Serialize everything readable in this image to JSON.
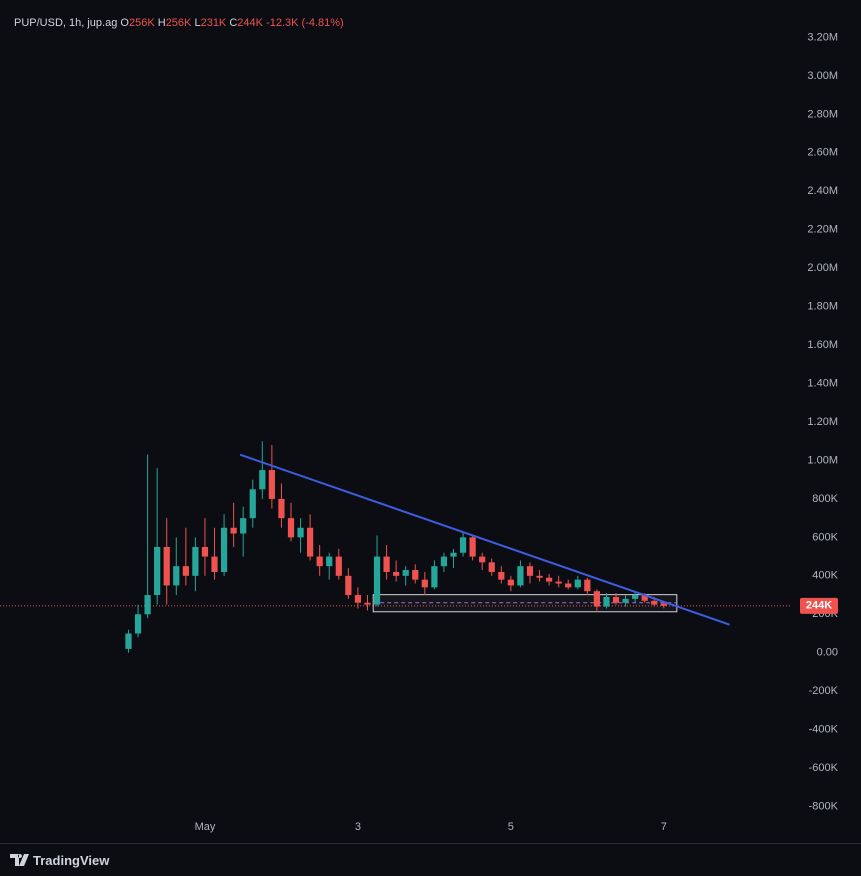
{
  "chart_data": {
    "type": "candlestick",
    "symbol": "PUP/USD, 1h, jup.ag",
    "legend_values": [
      {
        "key": "O",
        "value": "256K"
      },
      {
        "key": "H",
        "value": "256K"
      },
      {
        "key": "L",
        "value": "231K"
      },
      {
        "key": "C",
        "value": "244K"
      }
    ],
    "change": "-12.3K (-4.81%)",
    "last_price": {
      "value": 244000,
      "label": "244K"
    },
    "up_color": "#26a69a",
    "down_color": "#ef5350",
    "x": [
      0,
      0.125,
      0.25,
      0.375,
      0.5,
      0.625,
      0.75,
      0.875,
      1,
      1.125,
      1.25,
      1.375,
      1.5,
      1.625,
      1.75,
      1.875,
      2,
      2.125,
      2.25,
      2.375,
      2.5,
      2.625,
      2.75,
      2.875,
      3,
      3.125,
      3.25,
      3.375,
      3.5,
      3.625,
      3.75,
      3.875,
      4,
      4.125,
      4.25,
      4.375,
      4.5,
      4.625,
      4.75,
      4.875,
      5,
      5.125,
      5.25,
      5.375,
      5.5,
      5.625,
      5.75,
      5.875,
      6,
      6.125,
      6.25,
      6.375,
      6.5,
      6.625,
      6.75,
      6.875,
      7
    ],
    "open": [
      20000,
      100000,
      200000,
      300000,
      550000,
      350000,
      450000,
      400000,
      550000,
      500000,
      420000,
      650000,
      620000,
      700000,
      850000,
      950000,
      800000,
      700000,
      600000,
      650000,
      500000,
      450000,
      500000,
      400000,
      300000,
      260000,
      250000,
      500000,
      420000,
      400000,
      430000,
      380000,
      340000,
      450000,
      500000,
      520000,
      600000,
      500000,
      470000,
      420000,
      380000,
      350000,
      450000,
      400000,
      390000,
      370000,
      360000,
      340000,
      380000,
      320000,
      240000,
      290000,
      260000,
      280000,
      300000,
      270000,
      256000
    ],
    "high": [
      120000,
      250000,
      1030000,
      960000,
      700000,
      600000,
      650000,
      600000,
      700000,
      650000,
      720000,
      780000,
      760000,
      900000,
      1100000,
      1080000,
      880000,
      780000,
      700000,
      720000,
      560000,
      520000,
      540000,
      440000,
      340000,
      300000,
      610000,
      560000,
      480000,
      450000,
      460000,
      420000,
      480000,
      520000,
      540000,
      630000,
      610000,
      520000,
      490000,
      450000,
      400000,
      480000,
      470000,
      430000,
      410000,
      400000,
      380000,
      400000,
      390000,
      330000,
      310000,
      310000,
      300000,
      320000,
      310000,
      290000,
      256000
    ],
    "low": [
      0,
      80000,
      180000,
      250000,
      250000,
      300000,
      350000,
      320000,
      400000,
      380000,
      400000,
      550000,
      500000,
      650000,
      800000,
      750000,
      650000,
      580000,
      520000,
      480000,
      400000,
      380000,
      380000,
      280000,
      230000,
      220000,
      240000,
      380000,
      370000,
      350000,
      360000,
      300000,
      330000,
      420000,
      440000,
      500000,
      480000,
      430000,
      400000,
      360000,
      320000,
      340000,
      360000,
      370000,
      350000,
      340000,
      330000,
      330000,
      300000,
      210000,
      230000,
      250000,
      240000,
      260000,
      260000,
      240000,
      231000
    ],
    "close": [
      100000,
      200000,
      300000,
      550000,
      350000,
      450000,
      400000,
      550000,
      500000,
      420000,
      650000,
      620000,
      700000,
      850000,
      950000,
      800000,
      700000,
      600000,
      650000,
      500000,
      450000,
      500000,
      400000,
      300000,
      260000,
      250000,
      500000,
      420000,
      400000,
      430000,
      380000,
      340000,
      450000,
      500000,
      520000,
      600000,
      500000,
      470000,
      420000,
      380000,
      350000,
      450000,
      400000,
      390000,
      370000,
      360000,
      340000,
      380000,
      320000,
      240000,
      290000,
      260000,
      280000,
      300000,
      270000,
      250000,
      244000
    ],
    "trendline": {
      "x": [
        1.46,
        7.86
      ],
      "y": [
        1030000,
        146000
      ],
      "color": "#3d5ee0"
    },
    "box": {
      "x": [
        3.2,
        7.17
      ],
      "y": [
        213000,
        302000
      ],
      "mid": 260000
    },
    "xlim": [
      -1.68,
      8.65
    ],
    "xticks": [
      {
        "value": 1,
        "label": "May"
      },
      3,
      5,
      7
    ],
    "ylim": [
      -1000000,
      3400000
    ],
    "yticks": [
      {
        "value": -800000,
        "label": "-800K"
      },
      {
        "value": -600000,
        "label": "-600K"
      },
      {
        "value": -400000,
        "label": "-400K"
      },
      {
        "value": -200000,
        "label": "-200K"
      },
      {
        "value": 0,
        "label": "0.00"
      },
      {
        "value": 200000,
        "label": "200K"
      },
      {
        "value": 400000,
        "label": "400K"
      },
      {
        "value": 600000,
        "label": "600K"
      },
      {
        "value": 800000,
        "label": "800K"
      },
      {
        "value": 1000000,
        "label": "1.00M"
      },
      {
        "value": 1200000,
        "label": "1.20M"
      },
      {
        "value": 1400000,
        "label": "1.40M"
      },
      {
        "value": 1600000,
        "label": "1.60M"
      },
      {
        "value": 1800000,
        "label": "1.80M"
      },
      {
        "value": 2000000,
        "label": "2.00M"
      },
      {
        "value": 2200000,
        "label": "2.20M"
      },
      {
        "value": 2400000,
        "label": "2.40M"
      },
      {
        "value": 2600000,
        "label": "2.60M"
      },
      {
        "value": 2800000,
        "label": "2.80M"
      },
      {
        "value": 3000000,
        "label": "3.00M"
      },
      {
        "value": 3200000,
        "label": "3.20M"
      }
    ],
    "brand": "TradingView"
  }
}
